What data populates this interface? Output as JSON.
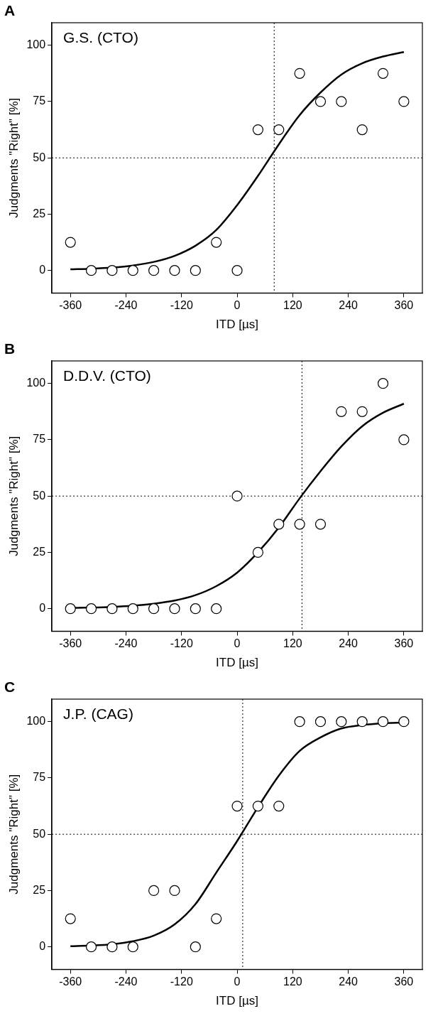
{
  "chart_data": [
    {
      "type": "scatter",
      "panel": "A",
      "title": "G.S. (CTO)",
      "x_label": "ITD [µs]",
      "y_label": "Judgments \"Right\" [%]",
      "xlim": [
        -400,
        400
      ],
      "ylim": [
        -10,
        110
      ],
      "xticks": [
        -360,
        -240,
        -120,
        0,
        120,
        240,
        360
      ],
      "yticks": [
        0,
        25,
        50,
        75,
        100
      ],
      "grid": false,
      "series": [
        {
          "type": "line",
          "line_style": "solid",
          "color": "#000000",
          "x": [
            -360,
            -315,
            -270,
            -225,
            -180,
            -135,
            -90,
            -45,
            0,
            45,
            90,
            135,
            180,
            225,
            270,
            315,
            360
          ],
          "values": [
            0.5,
            0.8,
            1.3,
            2.2,
            3.8,
            6.5,
            11,
            18,
            29,
            42,
            56,
            69,
            79,
            87,
            92,
            95,
            97
          ]
        },
        {
          "type": "scatter",
          "marker": "circle",
          "color": "#000000",
          "x": [
            -360,
            -315,
            -270,
            -225,
            -180,
            -135,
            -90,
            -45,
            0,
            45,
            90,
            135,
            180,
            225,
            270,
            315,
            360
          ],
          "values": [
            12.5,
            0,
            0,
            0,
            0,
            0,
            0,
            12.5,
            0,
            62.5,
            62.5,
            87.5,
            75,
            75,
            62.5,
            87.5,
            75
          ]
        }
      ],
      "annotations": [
        {
          "type": "hline",
          "y": 50,
          "line_style": "dotted"
        },
        {
          "type": "vline",
          "x": 80,
          "line_style": "dotted"
        }
      ]
    },
    {
      "type": "scatter",
      "panel": "B",
      "title": "D.D.V. (CTO)",
      "x_label": "ITD [µs]",
      "y_label": "Judgments \"Right\" [%]",
      "xlim": [
        -400,
        400
      ],
      "ylim": [
        -10,
        110
      ],
      "xticks": [
        -360,
        -240,
        -120,
        0,
        120,
        240,
        360
      ],
      "yticks": [
        0,
        25,
        50,
        75,
        100
      ],
      "grid": false,
      "series": [
        {
          "type": "line",
          "line_style": "solid",
          "color": "#000000",
          "x": [
            -360,
            -315,
            -270,
            -225,
            -180,
            -135,
            -90,
            -45,
            0,
            45,
            90,
            135,
            180,
            225,
            270,
            315,
            360
          ],
          "values": [
            0.3,
            0.5,
            0.8,
            1.3,
            2.2,
            3.6,
            6,
            10,
            16,
            25,
            36,
            49,
            61,
            72,
            81,
            87,
            91
          ]
        },
        {
          "type": "scatter",
          "marker": "circle",
          "color": "#000000",
          "x": [
            -360,
            -315,
            -270,
            -225,
            -180,
            -135,
            -90,
            -45,
            0,
            45,
            90,
            135,
            180,
            225,
            270,
            315,
            360
          ],
          "values": [
            0,
            0,
            0,
            0,
            0,
            0,
            0,
            0,
            50,
            25,
            37.5,
            37.5,
            37.5,
            87.5,
            87.5,
            100,
            75
          ]
        }
      ],
      "annotations": [
        {
          "type": "hline",
          "y": 50,
          "line_style": "dotted"
        },
        {
          "type": "vline",
          "x": 140,
          "line_style": "dotted"
        }
      ]
    },
    {
      "type": "scatter",
      "panel": "C",
      "title": "J.P. (CAG)",
      "x_label": "ITD [µs]",
      "y_label": "Judgments \"Right\" [%]",
      "xlim": [
        -400,
        400
      ],
      "ylim": [
        -10,
        110
      ],
      "xticks": [
        -360,
        -240,
        -120,
        0,
        120,
        240,
        360
      ],
      "yticks": [
        0,
        25,
        50,
        75,
        100
      ],
      "grid": false,
      "series": [
        {
          "type": "line",
          "line_style": "solid",
          "color": "#000000",
          "x": [
            -360,
            -315,
            -270,
            -225,
            -180,
            -135,
            -90,
            -45,
            0,
            45,
            90,
            135,
            180,
            225,
            270,
            315,
            360
          ],
          "values": [
            0.3,
            0.6,
            1.2,
            2.5,
            5,
            10,
            19,
            33,
            47,
            62,
            76,
            87,
            93,
            97,
            98.5,
            99.3,
            99.6
          ]
        },
        {
          "type": "scatter",
          "marker": "circle",
          "color": "#000000",
          "x": [
            -360,
            -315,
            -270,
            -225,
            -180,
            -135,
            -90,
            -45,
            0,
            45,
            90,
            135,
            180,
            225,
            270,
            315,
            360
          ],
          "values": [
            12.5,
            0,
            0,
            0,
            25,
            25,
            0,
            12.5,
            62.5,
            62.5,
            62.5,
            100,
            100,
            100,
            100,
            100,
            100
          ]
        }
      ],
      "annotations": [
        {
          "type": "hline",
          "y": 50,
          "line_style": "dotted"
        },
        {
          "type": "vline",
          "x": 12,
          "line_style": "dotted"
        }
      ]
    }
  ]
}
